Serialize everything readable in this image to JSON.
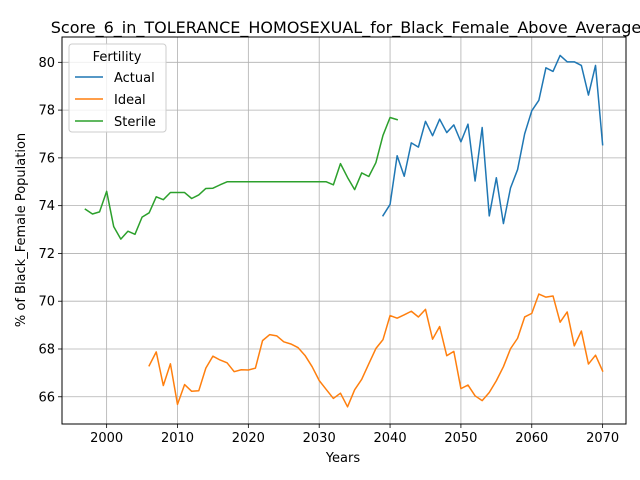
{
  "chart_data": {
    "type": "line",
    "title": "Score_6_in_TOLERANCE_HOMOSEXUAL_for_Black_Female_Above_Average_",
    "xlabel": "Years",
    "ylabel": "% of Black_Female Population",
    "xlim": [
      1993.7,
      2073.3
    ],
    "ylim": [
      64.86,
      81.06
    ],
    "xticks": [
      2000,
      2010,
      2020,
      2030,
      2040,
      2050,
      2060,
      2070
    ],
    "yticks": [
      66,
      68,
      70,
      72,
      74,
      76,
      78,
      80
    ],
    "grid": true,
    "legend": {
      "title": "Fertility",
      "position": "top-left"
    },
    "colors": {
      "Actual": "#1f77b4",
      "Ideal": "#ff7f0e",
      "Sterile": "#2ca02c"
    },
    "series": [
      {
        "name": "Actual",
        "x": [
          2039,
          2040,
          2041,
          2042,
          2043,
          2044,
          2045,
          2046,
          2047,
          2048,
          2049,
          2050,
          2051,
          2052,
          2053,
          2054,
          2055,
          2056,
          2057,
          2058,
          2059,
          2060,
          2061,
          2062,
          2063,
          2064,
          2065,
          2066,
          2067,
          2068,
          2069,
          2070
        ],
        "y": [
          73.58,
          74.05,
          76.09,
          75.23,
          76.63,
          76.45,
          77.53,
          76.93,
          77.62,
          77.06,
          77.38,
          76.67,
          77.41,
          75.03,
          77.27,
          73.57,
          75.17,
          73.25,
          74.74,
          75.51,
          77.01,
          77.97,
          78.41,
          79.77,
          79.62,
          80.29,
          80.02,
          80.02,
          79.87,
          78.63,
          79.87,
          76.55
        ]
      },
      {
        "name": "Ideal",
        "x": [
          2006,
          2007,
          2008,
          2009,
          2010,
          2011,
          2012,
          2013,
          2014,
          2015,
          2016,
          2017,
          2018,
          2019,
          2020,
          2021,
          2022,
          2023,
          2024,
          2025,
          2026,
          2027,
          2028,
          2029,
          2030,
          2031,
          2032,
          2033,
          2034,
          2035,
          2036,
          2037,
          2038,
          2039,
          2040,
          2041,
          2042,
          2043,
          2044,
          2045,
          2046,
          2047,
          2048,
          2049,
          2050,
          2051,
          2052,
          2053,
          2054,
          2055,
          2056,
          2057,
          2058,
          2059,
          2060,
          2061,
          2062,
          2063,
          2064,
          2065,
          2066,
          2067,
          2068,
          2069,
          2070
        ],
        "y": [
          67.3,
          67.88,
          66.47,
          67.38,
          65.68,
          66.51,
          66.23,
          66.25,
          67.2,
          67.7,
          67.54,
          67.42,
          67.05,
          67.13,
          67.12,
          67.2,
          68.35,
          68.6,
          68.55,
          68.3,
          68.21,
          68.06,
          67.73,
          67.26,
          66.68,
          66.3,
          65.93,
          66.15,
          65.58,
          66.29,
          66.73,
          67.38,
          68.02,
          68.39,
          69.4,
          69.29,
          69.43,
          69.58,
          69.34,
          69.66,
          68.41,
          68.94,
          67.72,
          67.9,
          66.34,
          66.49,
          66.04,
          65.84,
          66.18,
          66.67,
          67.26,
          68.01,
          68.45,
          69.34,
          69.49,
          70.3,
          70.17,
          70.22,
          69.12,
          69.55,
          68.13,
          68.75,
          67.37,
          67.74,
          67.08
        ]
      },
      {
        "name": "Sterile",
        "x": [
          1997,
          1998,
          1999,
          2000,
          2001,
          2002,
          2003,
          2004,
          2005,
          2006,
          2007,
          2008,
          2009,
          2010,
          2011,
          2012,
          2013,
          2014,
          2015,
          2016,
          2017,
          2018,
          2019,
          2020,
          2021,
          2022,
          2023,
          2024,
          2025,
          2026,
          2027,
          2028,
          2029,
          2030,
          2031,
          2032,
          2033,
          2034,
          2035,
          2036,
          2037,
          2038,
          2039,
          2040,
          2041
        ],
        "y": [
          73.85,
          73.65,
          73.74,
          74.6,
          73.12,
          72.6,
          72.93,
          72.8,
          73.52,
          73.7,
          74.37,
          74.25,
          74.55,
          74.55,
          74.55,
          74.3,
          74.45,
          74.72,
          74.73,
          74.87,
          75.0,
          75.0,
          75.0,
          75.0,
          75.0,
          75.0,
          75.0,
          75.0,
          75.0,
          75.0,
          75.0,
          75.0,
          75.0,
          75.0,
          75.0,
          74.87,
          75.76,
          75.18,
          74.67,
          75.37,
          75.22,
          75.8,
          76.94,
          77.69,
          77.6
        ]
      }
    ]
  }
}
